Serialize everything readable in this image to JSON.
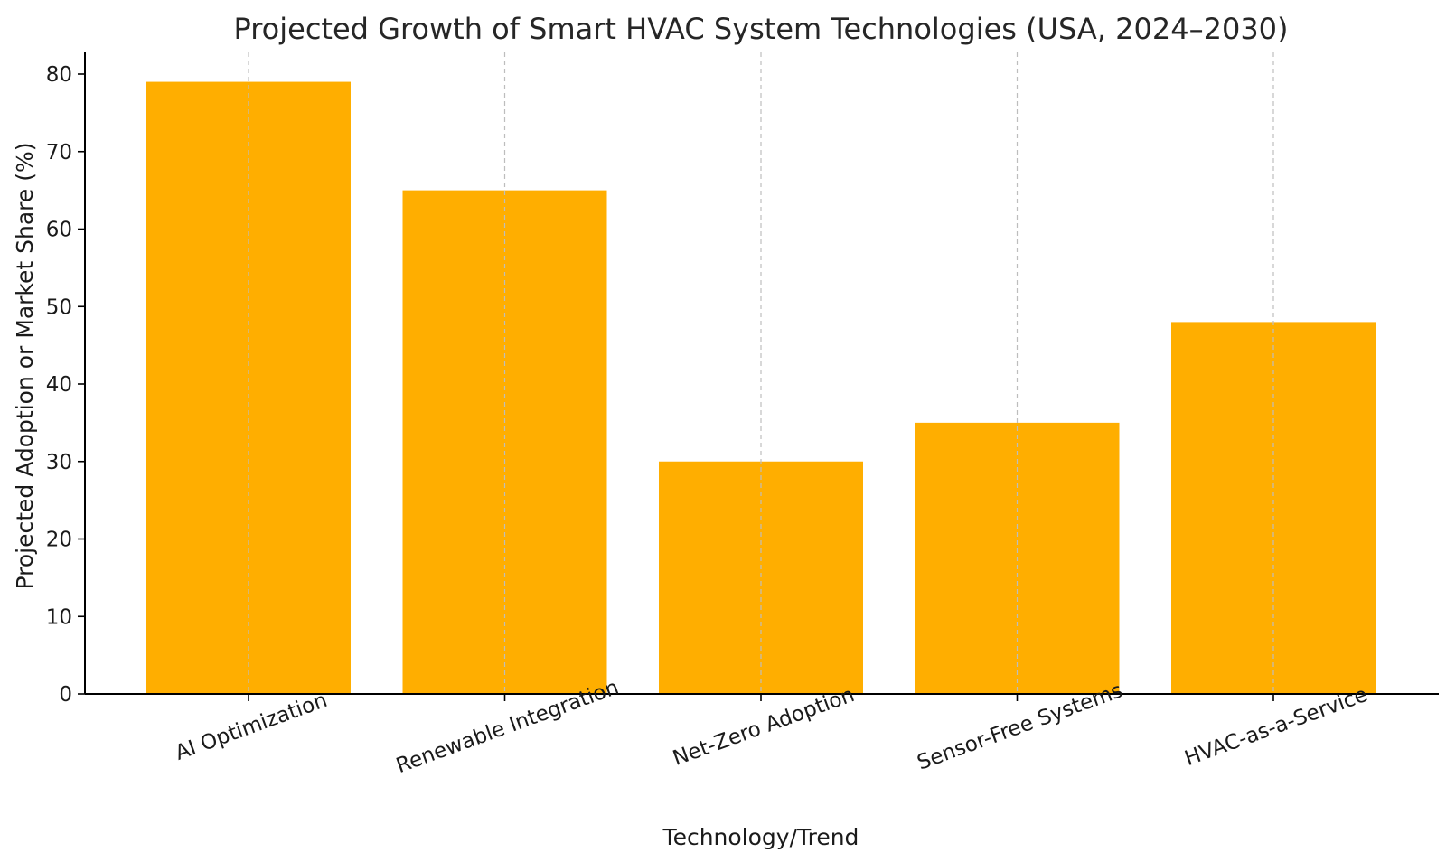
{
  "chart_data": {
    "type": "bar",
    "title": "Projected Growth of Smart HVAC System Technologies (USA, 2024–2030)",
    "xlabel": "Technology/Trend",
    "ylabel": "Projected Adoption or Market Share (%)",
    "categories": [
      "AI Optimization",
      "Renewable Integration",
      "Net-Zero Adoption",
      "Sensor-Free Systems",
      "HVAC-as-a-Service"
    ],
    "values": [
      79,
      65,
      30,
      35,
      48
    ],
    "ylim": [
      0,
      80
    ],
    "yticks": [
      0,
      10,
      20,
      30,
      40,
      50,
      60,
      70,
      80
    ],
    "grid": "vertical dashed lines at category centers",
    "x_tick_rotation": "20 degrees counter-clockwise",
    "bar_color": "#FFAE00"
  }
}
